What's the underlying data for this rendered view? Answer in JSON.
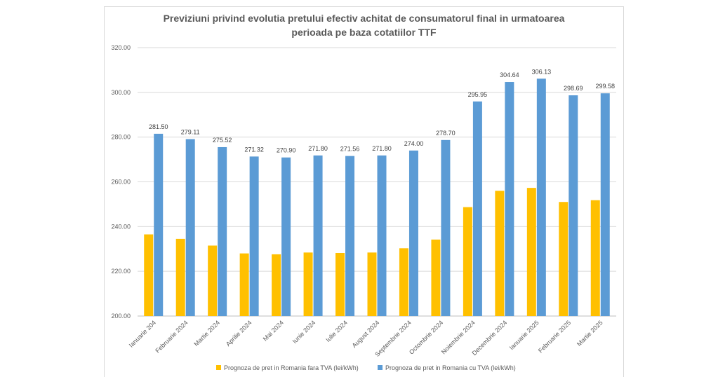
{
  "chart_data": {
    "type": "bar",
    "title_lines": [
      "Previziuni privind evolutia pretului efectiv achitat de consumatorul final in urmatoarea",
      "perioada pe baza cotatiilor TTF"
    ],
    "categories": [
      "Ianuarie 204",
      "Februarie 2024",
      "Martie 2024",
      "Aprilie 2024",
      "Mai 2024",
      "Iunie 2024",
      "Iulie 2024",
      "August 2024",
      "Septembrie 2024",
      "Octombrie 2024",
      "Noiembrie 2024",
      "Decembrie 2024",
      "Ianuarie 2025",
      "Februarie 2025",
      "Martie 2025"
    ],
    "series": [
      {
        "name": "Prognoza de pret in Romania fara TVA (lei/kWh)",
        "color": "#ffc000",
        "values": [
          236.5,
          234.5,
          231.5,
          228.0,
          227.6,
          228.4,
          228.2,
          228.4,
          230.3,
          234.2,
          248.7,
          256.0,
          257.3,
          251.0,
          251.8
        ],
        "show_labels": false
      },
      {
        "name": "Prognoza de pret in Romania cu TVA (lei/kWh)",
        "color": "#5b9bd5",
        "values": [
          281.5,
          279.11,
          275.52,
          271.32,
          270.9,
          271.8,
          271.56,
          271.8,
          274.0,
          278.7,
          295.95,
          304.64,
          306.13,
          298.69,
          299.58
        ],
        "data_labels": [
          "281.50",
          "279.11",
          "275.52",
          "271.32",
          "270.90",
          "271.80",
          "271.56",
          "271.80",
          "274.00",
          "278.70",
          "295.95",
          "304.64",
          "306.13",
          "298.69",
          "299.58"
        ],
        "show_labels": true
      }
    ],
    "ylim": [
      200,
      320
    ],
    "yticks": [
      200,
      220,
      240,
      260,
      280,
      300,
      320
    ],
    "ytick_labels": [
      "200.00",
      "220.00",
      "240.00",
      "260.00",
      "280.00",
      "300.00",
      "320.00"
    ],
    "grid": true,
    "legend_position": "bottom"
  }
}
